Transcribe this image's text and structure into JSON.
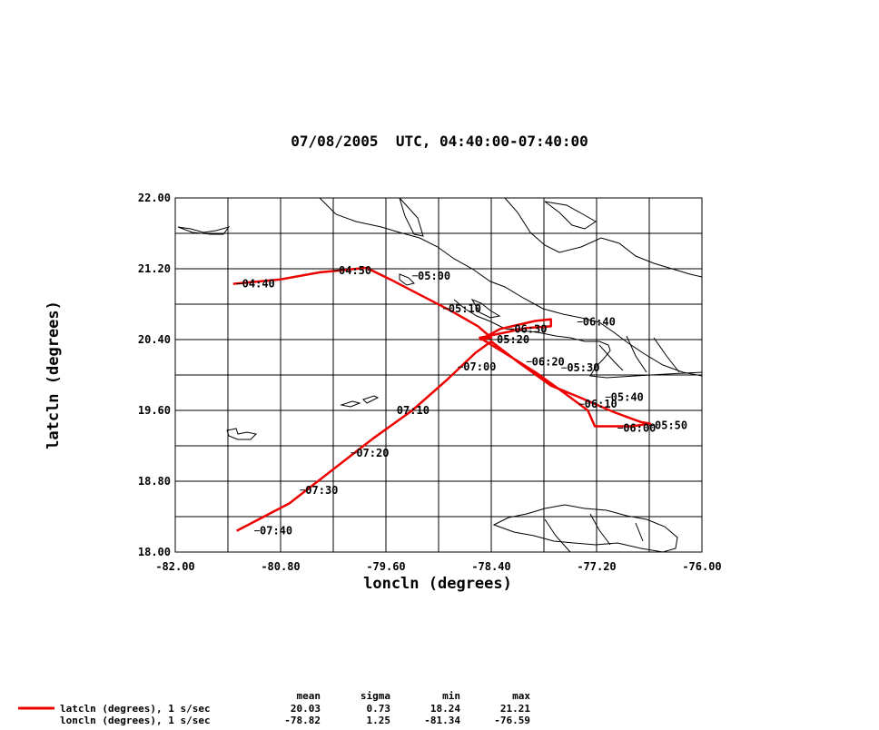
{
  "chart_data": {
    "type": "line",
    "title": "07/08/2005  UTC, 04:40:00-07:40:00",
    "xlabel": "loncln (degrees)",
    "ylabel": "latcln (degrees)",
    "xlim": [
      -82.0,
      -76.0
    ],
    "ylim": [
      18.0,
      22.0
    ],
    "x_ticks": [
      "-82.00",
      "-80.80",
      "-79.60",
      "-78.40",
      "-77.20",
      "-76.00"
    ],
    "y_ticks": [
      "18.00",
      "18.80",
      "19.60",
      "20.40",
      "21.20",
      "22.00"
    ],
    "grid": true,
    "line_color": "#ee0000",
    "series": [
      {
        "name": "latcln (degrees), 1 s/sec",
        "points": [
          [
            -81.34,
            21.03
          ],
          [
            -80.8,
            21.08
          ],
          [
            -80.35,
            21.16
          ],
          [
            -79.82,
            21.21
          ],
          [
            -79.55,
            21.08
          ],
          [
            -79.2,
            20.9
          ],
          [
            -78.85,
            20.72
          ],
          [
            -78.55,
            20.55
          ],
          [
            -78.4,
            20.42
          ],
          [
            -78.52,
            20.4
          ],
          [
            -78.3,
            20.52
          ],
          [
            -77.9,
            20.61
          ],
          [
            -77.72,
            20.63
          ],
          [
            -77.72,
            20.55
          ],
          [
            -78.0,
            20.53
          ],
          [
            -78.53,
            20.42
          ],
          [
            -78.2,
            20.22
          ],
          [
            -77.88,
            20.02
          ],
          [
            -77.6,
            19.82
          ],
          [
            -77.3,
            19.6
          ],
          [
            -77.22,
            19.42
          ],
          [
            -76.8,
            19.42
          ],
          [
            -76.59,
            19.45
          ],
          [
            -76.7,
            19.47
          ],
          [
            -77.0,
            19.58
          ],
          [
            -77.4,
            19.75
          ],
          [
            -77.72,
            19.88
          ],
          [
            -78.1,
            20.15
          ],
          [
            -78.4,
            20.38
          ],
          [
            -78.58,
            20.25
          ],
          [
            -78.9,
            19.95
          ],
          [
            -79.3,
            19.6
          ],
          [
            -79.75,
            19.28
          ],
          [
            -80.05,
            19.05
          ],
          [
            -80.7,
            18.55
          ],
          [
            -81.3,
            18.24
          ]
        ],
        "time_labels": [
          {
            "t": "04:40",
            "lon": -81.3,
            "lat": 21.03
          },
          {
            "t": "04:50",
            "lon": -80.2,
            "lat": 21.18
          },
          {
            "t": "05:00",
            "lon": -79.3,
            "lat": 21.12
          },
          {
            "t": "05:10",
            "lon": -78.95,
            "lat": 20.75
          },
          {
            "t": "05:20",
            "lon": -78.4,
            "lat": 20.4
          },
          {
            "t": "05:30",
            "lon": -77.6,
            "lat": 20.08
          },
          {
            "t": "05:40",
            "lon": -77.1,
            "lat": 19.75
          },
          {
            "t": "05:50",
            "lon": -76.6,
            "lat": 19.43
          },
          {
            "t": "06:00",
            "lon": -76.96,
            "lat": 19.4
          },
          {
            "t": "06:10",
            "lon": -77.4,
            "lat": 19.67
          },
          {
            "t": "06:20",
            "lon": -78.0,
            "lat": 20.15
          },
          {
            "t": "06:30",
            "lon": -78.2,
            "lat": 20.52
          },
          {
            "t": "06:40",
            "lon": -77.42,
            "lat": 20.6
          },
          {
            "t": "07:00",
            "lon": -78.78,
            "lat": 20.09
          },
          {
            "t": "07:10",
            "lon": -79.54,
            "lat": 19.6
          },
          {
            "t": "07:20",
            "lon": -80.0,
            "lat": 19.12
          },
          {
            "t": "07:30",
            "lon": -80.58,
            "lat": 18.7
          },
          {
            "t": "07:40",
            "lon": -81.1,
            "lat": 18.24
          }
        ]
      }
    ]
  },
  "stats_table": {
    "headers": [
      "mean",
      "sigma",
      "min",
      "max"
    ],
    "rows": [
      {
        "label": "latcln (degrees), 1 s/sec",
        "mean": "20.03",
        "sigma": "0.73",
        "min": "18.24",
        "max": "21.21",
        "show_swatch": true
      },
      {
        "label": "loncln (degrees), 1 s/sec",
        "mean": "-78.82",
        "sigma": "1.25",
        "min": "-81.34",
        "max": "-76.59",
        "show_swatch": false
      }
    ]
  }
}
